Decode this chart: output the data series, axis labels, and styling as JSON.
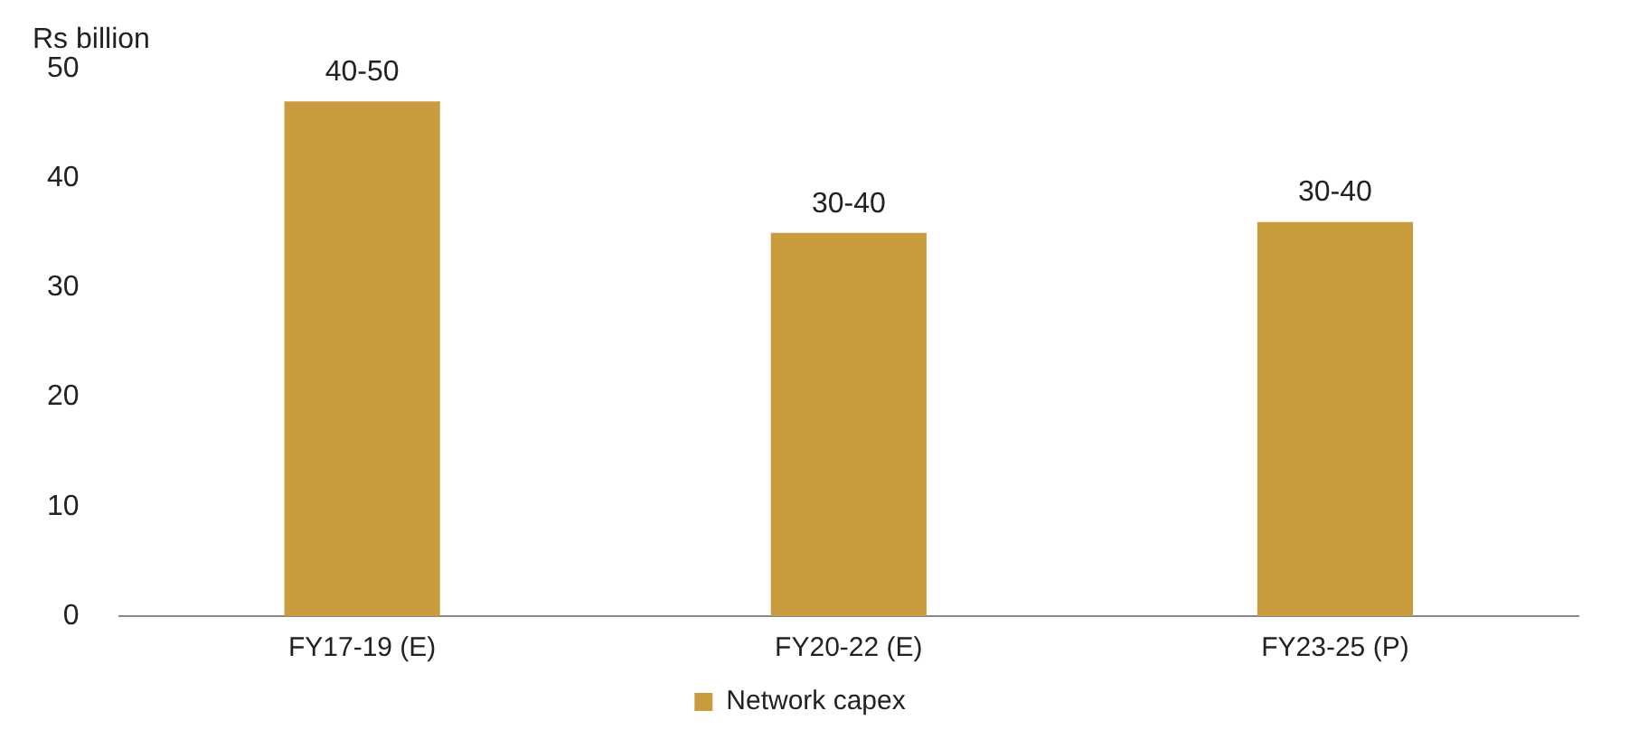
{
  "chart_data": {
    "type": "bar",
    "ylabel": "Rs billion",
    "categories": [
      "FY17-19 (E)",
      "FY20-22 (E)",
      "FY23-25 (P)"
    ],
    "series": [
      {
        "name": "Network capex",
        "color": "#c89b3c",
        "values": [
          47,
          35,
          36
        ],
        "value_labels": [
          "40-50",
          "30-40",
          "30-40"
        ]
      }
    ],
    "ylim": [
      0,
      50
    ],
    "yticks": [
      0,
      10,
      20,
      30,
      40,
      50
    ],
    "grid": false,
    "legend": "bottom"
  }
}
